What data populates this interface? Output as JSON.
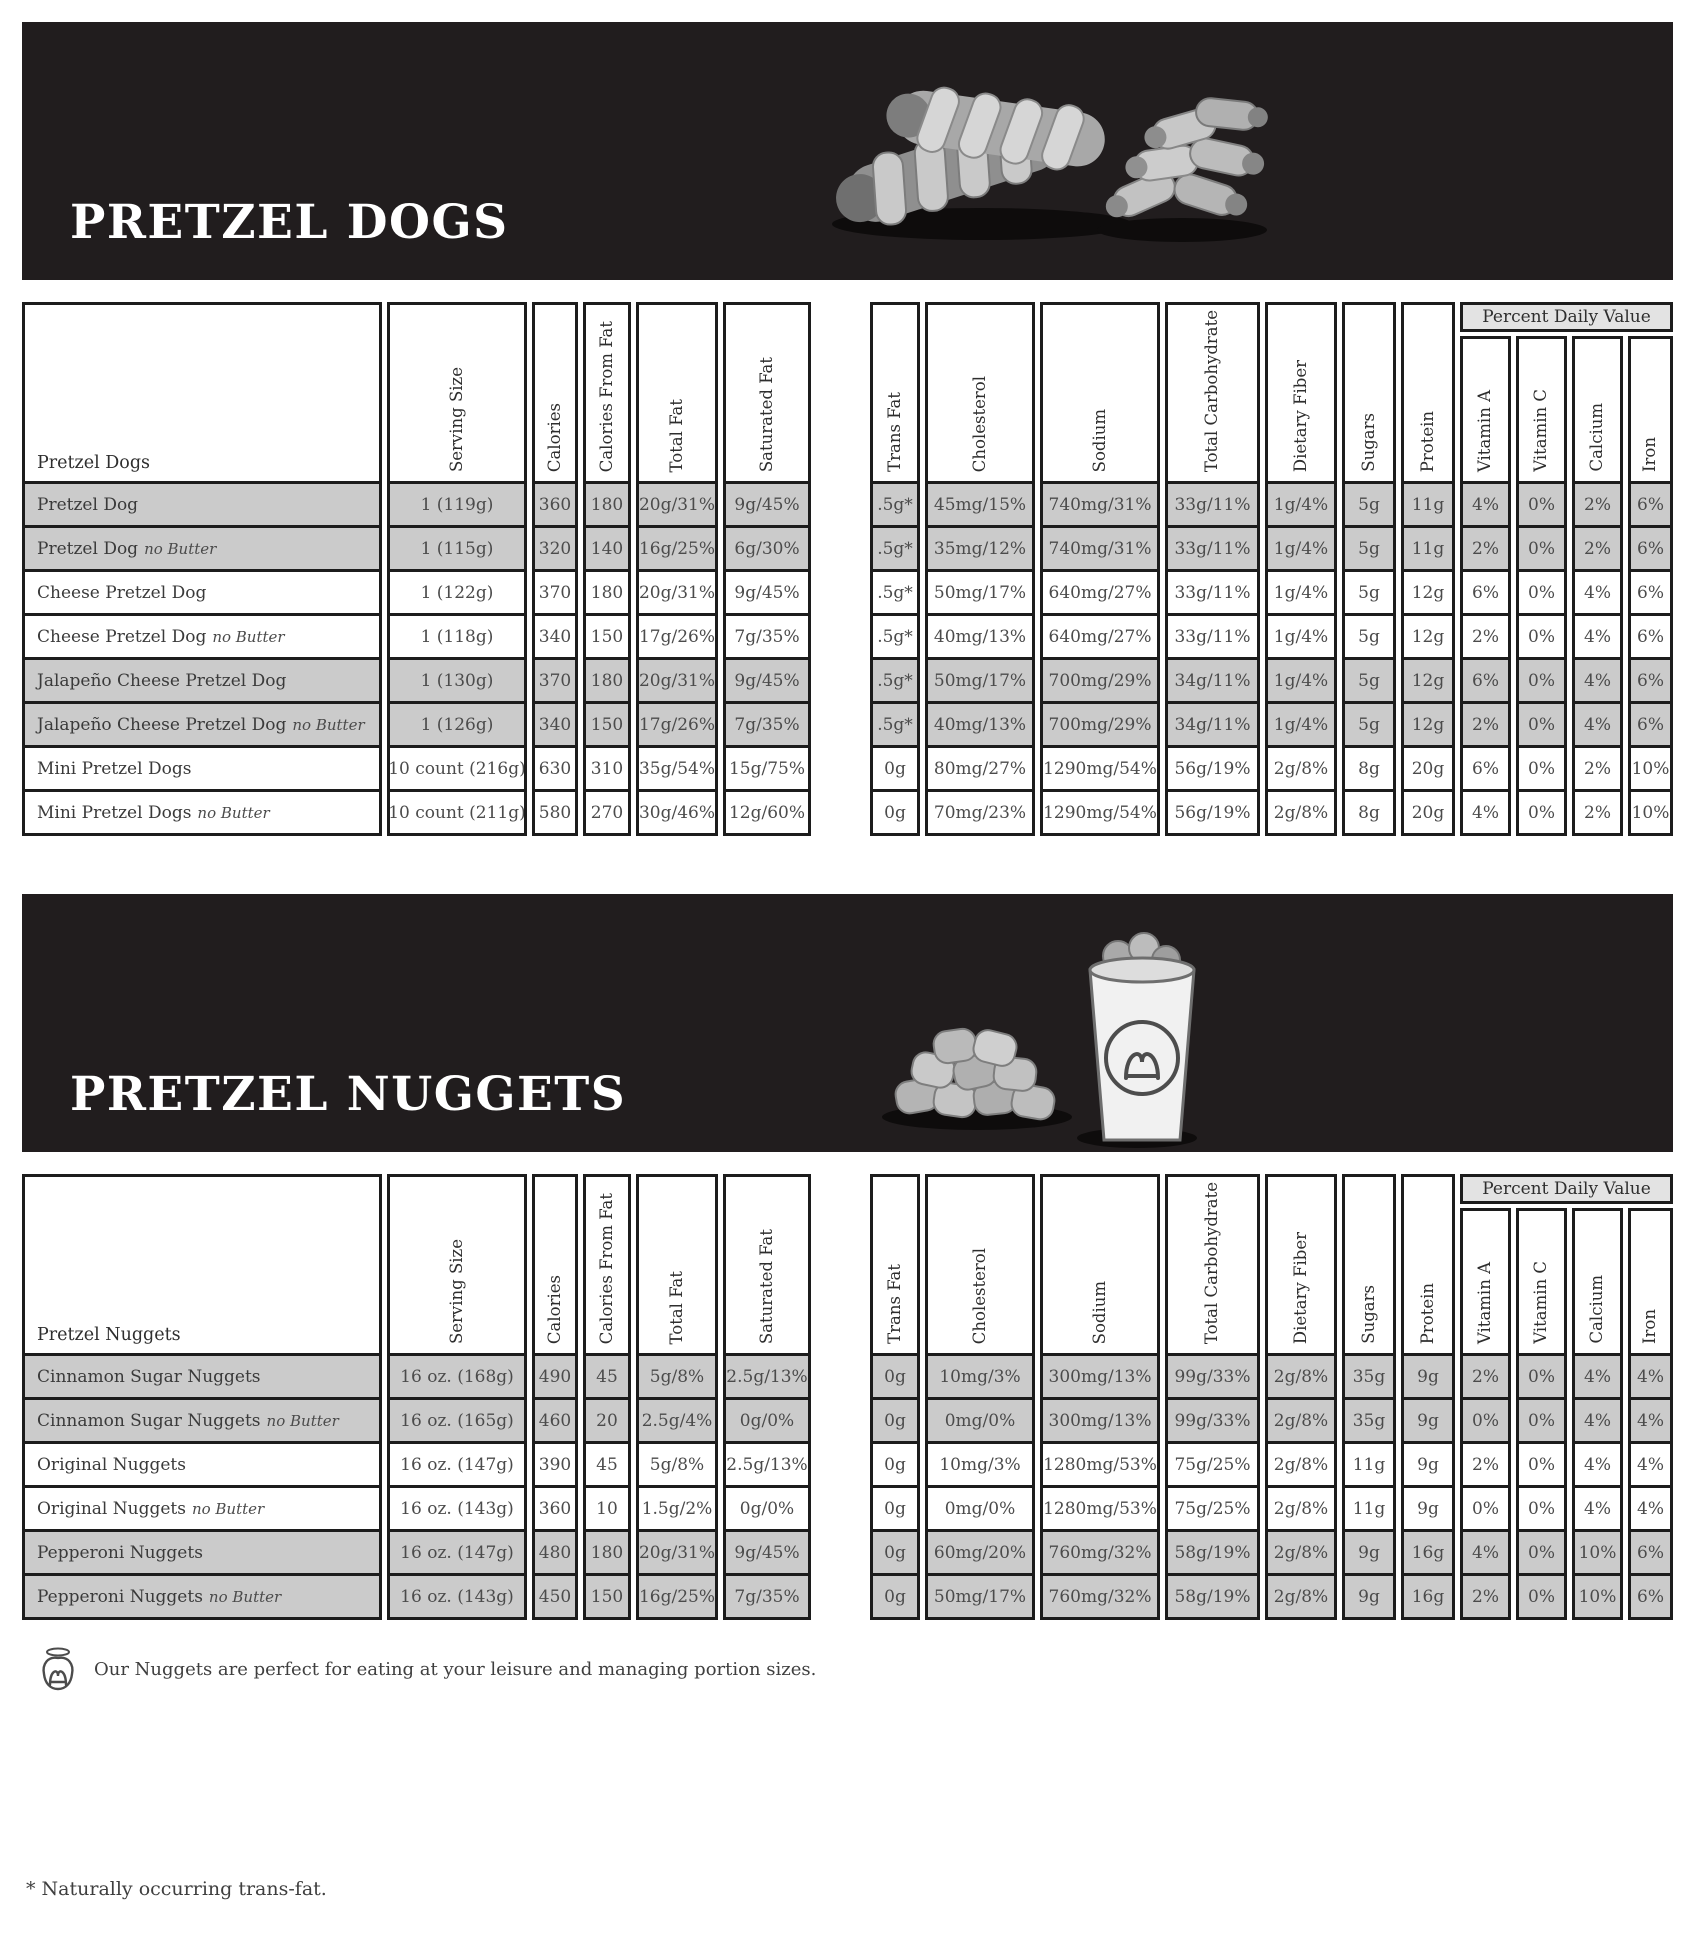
{
  "colors": {
    "banner_bg": "#211d1e",
    "row_shade": "#cbcbcb",
    "pdv_header_bg": "#e3e3e3",
    "grid_border": "#1c1c1c"
  },
  "footnote": "* Naturally occurring trans-fat.",
  "sections": [
    {
      "title": "PRETZEL DOGS",
      "label": "Pretzel Dogs",
      "pdv_label": "Percent Daily Value",
      "left_columns": [
        "Serving Size",
        "Calories",
        "Calories From Fat",
        "Total Fat",
        "Saturated Fat"
      ],
      "right_columns": [
        "Trans Fat",
        "Cholesterol",
        "Sodium",
        "Total Carbohydrate",
        "Dietary Fiber",
        "Sugars",
        "Protein"
      ],
      "pdv_columns": [
        "Vitamin A",
        "Vitamin C",
        "Calcium",
        "Iron"
      ],
      "rows": [
        {
          "name": "Pretzel Dog",
          "suffix": "",
          "shaded": true,
          "left": [
            "1 (119g)",
            "360",
            "180",
            "20g/31%",
            "9g/45%"
          ],
          "right": [
            ".5g*",
            "45mg/15%",
            "740mg/31%",
            "33g/11%",
            "1g/4%",
            "5g",
            "11g"
          ],
          "pdv": [
            "4%",
            "0%",
            "2%",
            "6%"
          ]
        },
        {
          "name": "Pretzel Dog",
          "suffix": "no Butter",
          "shaded": true,
          "left": [
            "1 (115g)",
            "320",
            "140",
            "16g/25%",
            "6g/30%"
          ],
          "right": [
            ".5g*",
            "35mg/12%",
            "740mg/31%",
            "33g/11%",
            "1g/4%",
            "5g",
            "11g"
          ],
          "pdv": [
            "2%",
            "0%",
            "2%",
            "6%"
          ]
        },
        {
          "name": "Cheese Pretzel Dog",
          "suffix": "",
          "shaded": false,
          "left": [
            "1 (122g)",
            "370",
            "180",
            "20g/31%",
            "9g/45%"
          ],
          "right": [
            ".5g*",
            "50mg/17%",
            "640mg/27%",
            "33g/11%",
            "1g/4%",
            "5g",
            "12g"
          ],
          "pdv": [
            "6%",
            "0%",
            "4%",
            "6%"
          ]
        },
        {
          "name": "Cheese Pretzel Dog",
          "suffix": "no Butter",
          "shaded": false,
          "left": [
            "1 (118g)",
            "340",
            "150",
            "17g/26%",
            "7g/35%"
          ],
          "right": [
            ".5g*",
            "40mg/13%",
            "640mg/27%",
            "33g/11%",
            "1g/4%",
            "5g",
            "12g"
          ],
          "pdv": [
            "2%",
            "0%",
            "4%",
            "6%"
          ]
        },
        {
          "name": "Jalapeño Cheese Pretzel Dog",
          "suffix": "",
          "shaded": true,
          "left": [
            "1 (130g)",
            "370",
            "180",
            "20g/31%",
            "9g/45%"
          ],
          "right": [
            ".5g*",
            "50mg/17%",
            "700mg/29%",
            "34g/11%",
            "1g/4%",
            "5g",
            "12g"
          ],
          "pdv": [
            "6%",
            "0%",
            "4%",
            "6%"
          ]
        },
        {
          "name": "Jalapeño Cheese Pretzel Dog",
          "suffix": "no Butter",
          "shaded": true,
          "left": [
            "1 (126g)",
            "340",
            "150",
            "17g/26%",
            "7g/35%"
          ],
          "right": [
            ".5g*",
            "40mg/13%",
            "700mg/29%",
            "34g/11%",
            "1g/4%",
            "5g",
            "12g"
          ],
          "pdv": [
            "2%",
            "0%",
            "4%",
            "6%"
          ]
        },
        {
          "name": "Mini Pretzel Dogs",
          "suffix": "",
          "shaded": false,
          "left": [
            "10 count (216g)",
            "630",
            "310",
            "35g/54%",
            "15g/75%"
          ],
          "right": [
            "0g",
            "80mg/27%",
            "1290mg/54%",
            "56g/19%",
            "2g/8%",
            "8g",
            "20g"
          ],
          "pdv": [
            "6%",
            "0%",
            "2%",
            "10%"
          ]
        },
        {
          "name": "Mini Pretzel Dogs",
          "suffix": "no Butter",
          "shaded": false,
          "left": [
            "10 count (211g)",
            "580",
            "270",
            "30g/46%",
            "12g/60%"
          ],
          "right": [
            "0g",
            "70mg/23%",
            "1290mg/54%",
            "56g/19%",
            "2g/8%",
            "8g",
            "20g"
          ],
          "pdv": [
            "4%",
            "0%",
            "2%",
            "10%"
          ]
        }
      ]
    },
    {
      "title": "PRETZEL NUGGETS",
      "label": "Pretzel Nuggets",
      "pdv_label": "Percent Daily Value",
      "note": "Our Nuggets are perfect for eating at your leisure and managing portion sizes.",
      "left_columns": [
        "Serving Size",
        "Calories",
        "Calories From Fat",
        "Total Fat",
        "Saturated Fat"
      ],
      "right_columns": [
        "Trans Fat",
        "Cholesterol",
        "Sodium",
        "Total Carbohydrate",
        "Dietary Fiber",
        "Sugars",
        "Protein"
      ],
      "pdv_columns": [
        "Vitamin A",
        "Vitamin C",
        "Calcium",
        "Iron"
      ],
      "rows": [
        {
          "name": "Cinnamon Sugar Nuggets",
          "suffix": "",
          "shaded": true,
          "left": [
            "16 oz. (168g)",
            "490",
            "45",
            "5g/8%",
            "2.5g/13%"
          ],
          "right": [
            "0g",
            "10mg/3%",
            "300mg/13%",
            "99g/33%",
            "2g/8%",
            "35g",
            "9g"
          ],
          "pdv": [
            "2%",
            "0%",
            "4%",
            "4%"
          ]
        },
        {
          "name": "Cinnamon Sugar Nuggets",
          "suffix": "no Butter",
          "shaded": true,
          "left": [
            "16 oz. (165g)",
            "460",
            "20",
            "2.5g/4%",
            "0g/0%"
          ],
          "right": [
            "0g",
            "0mg/0%",
            "300mg/13%",
            "99g/33%",
            "2g/8%",
            "35g",
            "9g"
          ],
          "pdv": [
            "0%",
            "0%",
            "4%",
            "4%"
          ]
        },
        {
          "name": "Original Nuggets",
          "suffix": "",
          "shaded": false,
          "left": [
            "16 oz. (147g)",
            "390",
            "45",
            "5g/8%",
            "2.5g/13%"
          ],
          "right": [
            "0g",
            "10mg/3%",
            "1280mg/53%",
            "75g/25%",
            "2g/8%",
            "11g",
            "9g"
          ],
          "pdv": [
            "2%",
            "0%",
            "4%",
            "4%"
          ]
        },
        {
          "name": "Original Nuggets",
          "suffix": "no Butter",
          "shaded": false,
          "left": [
            "16 oz. (143g)",
            "360",
            "10",
            "1.5g/2%",
            "0g/0%"
          ],
          "right": [
            "0g",
            "0mg/0%",
            "1280mg/53%",
            "75g/25%",
            "2g/8%",
            "11g",
            "9g"
          ],
          "pdv": [
            "0%",
            "0%",
            "4%",
            "4%"
          ]
        },
        {
          "name": "Pepperoni Nuggets",
          "suffix": "",
          "shaded": true,
          "left": [
            "16 oz. (147g)",
            "480",
            "180",
            "20g/31%",
            "9g/45%"
          ],
          "right": [
            "0g",
            "60mg/20%",
            "760mg/32%",
            "58g/19%",
            "2g/8%",
            "9g",
            "16g"
          ],
          "pdv": [
            "4%",
            "0%",
            "10%",
            "6%"
          ]
        },
        {
          "name": "Pepperoni Nuggets",
          "suffix": "no Butter",
          "shaded": true,
          "left": [
            "16 oz. (143g)",
            "450",
            "150",
            "16g/25%",
            "7g/35%"
          ],
          "right": [
            "0g",
            "50mg/17%",
            "760mg/32%",
            "58g/19%",
            "2g/8%",
            "9g",
            "16g"
          ],
          "pdv": [
            "2%",
            "0%",
            "10%",
            "6%"
          ]
        }
      ]
    }
  ]
}
